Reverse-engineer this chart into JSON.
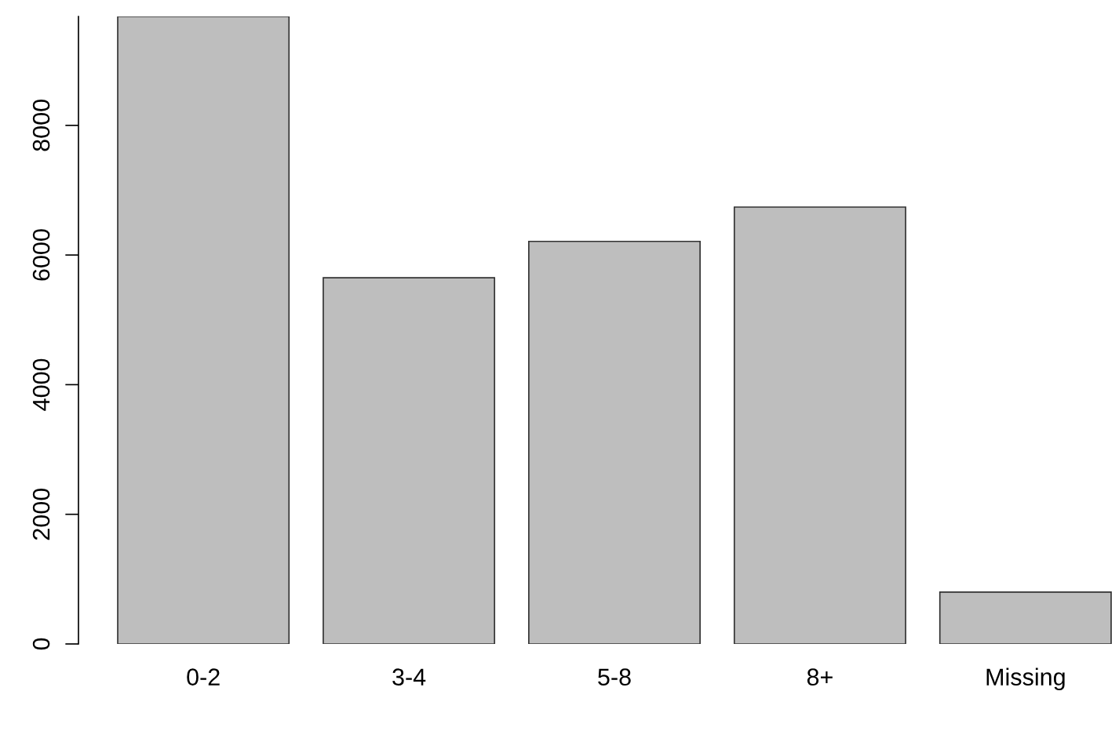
{
  "chart_data": {
    "type": "bar",
    "categories": [
      "0-2",
      "3-4",
      "5-8",
      "8+",
      "Missing"
    ],
    "values": [
      9680,
      5650,
      6210,
      6740,
      800
    ],
    "color": "#bebebe",
    "ylim": [
      0,
      9680
    ],
    "yticks": [
      0,
      2000,
      4000,
      6000,
      8000
    ],
    "grid": false,
    "legend": false
  }
}
